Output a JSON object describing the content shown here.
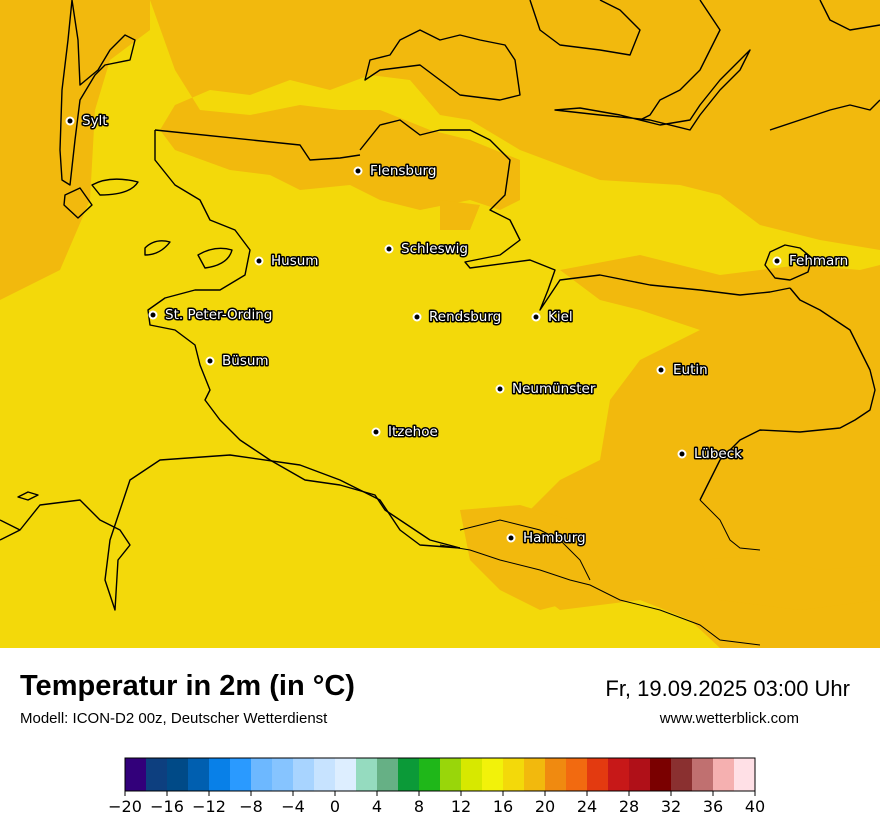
{
  "map": {
    "background_color": "#f3d90a",
    "warm_color": "#f2b90d",
    "cities": [
      {
        "name": "Sylt"
      },
      {
        "name": "Flensburg"
      },
      {
        "name": "Schleswig"
      },
      {
        "name": "Husum"
      },
      {
        "name": "St. Peter-Ording"
      },
      {
        "name": "Büsum"
      },
      {
        "name": "Rendsburg"
      },
      {
        "name": "Kiel"
      },
      {
        "name": "Fehmarn"
      },
      {
        "name": "Neumünster"
      },
      {
        "name": "Eutin"
      },
      {
        "name": "Itzehoe"
      },
      {
        "name": "Lübeck"
      },
      {
        "name": "Hamburg"
      }
    ]
  },
  "footer": {
    "title": "Temperatur in 2m (in °C)",
    "model": "Modell: ICON-D2 00z, Deutscher Wetterdienst",
    "datetime": "Fr, 19.09.2025 03:00 Uhr",
    "website": "www.wetterblick.com"
  },
  "legend": {
    "colors": [
      "#32007a",
      "#0d3f7f",
      "#004a87",
      "#005fb0",
      "#0880e8",
      "#2a9aff",
      "#6db8ff",
      "#86c4ff",
      "#a8d4ff",
      "#c7e3ff",
      "#ddeeff",
      "#95dbbf",
      "#66b085",
      "#0b9a38",
      "#1fb719",
      "#99d60a",
      "#d7e800",
      "#f2f20a",
      "#f3d90a",
      "#f2b90d",
      "#f08a10",
      "#f26a10",
      "#e33a10",
      "#c71818",
      "#b01018",
      "#7a0000",
      "#8a3030",
      "#c07070",
      "#f5b0b0",
      "#ffe0e6"
    ],
    "tick_labels": [
      "−20",
      "−16",
      "−12",
      "−8",
      "−4",
      "0",
      "4",
      "8",
      "12",
      "16",
      "20",
      "24",
      "28",
      "32",
      "36",
      "40"
    ]
  }
}
